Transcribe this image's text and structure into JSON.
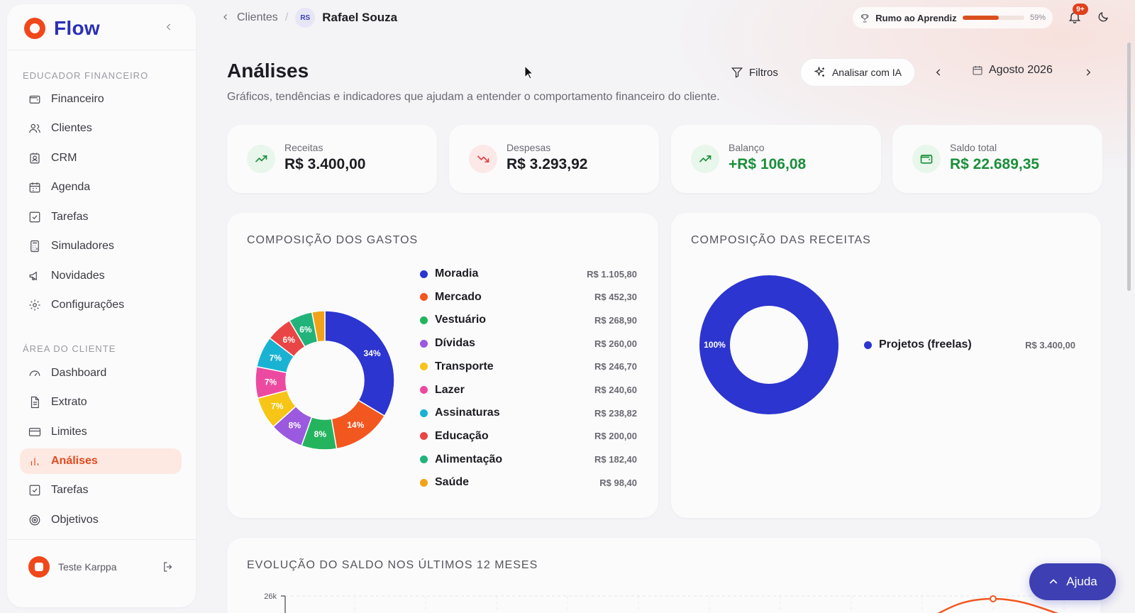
{
  "brand": {
    "name": "Flow"
  },
  "sidebar": {
    "section_advisor": "EDUCADOR FINANCEIRO",
    "advisor_items": [
      {
        "label": "Financeiro",
        "icon": "wallet-icon"
      },
      {
        "label": "Clientes",
        "icon": "users-icon"
      },
      {
        "label": "CRM",
        "icon": "contact-icon"
      },
      {
        "label": "Agenda",
        "icon": "calendar-icon"
      },
      {
        "label": "Tarefas",
        "icon": "checkbox-icon"
      },
      {
        "label": "Simuladores",
        "icon": "calculator-icon"
      },
      {
        "label": "Novidades",
        "icon": "megaphone-icon"
      },
      {
        "label": "Configurações",
        "icon": "gear-icon"
      }
    ],
    "section_client": "ÁREA DO CLIENTE",
    "client_items": [
      {
        "label": "Dashboard",
        "icon": "gauge-icon"
      },
      {
        "label": "Extrato",
        "icon": "document-icon"
      },
      {
        "label": "Limites",
        "icon": "card-icon"
      },
      {
        "label": "Análises",
        "icon": "bar-chart-icon",
        "active": true
      },
      {
        "label": "Tarefas",
        "icon": "checkbox-icon"
      },
      {
        "label": "Objetivos",
        "icon": "target-icon"
      }
    ],
    "user_name": "Teste Karppa"
  },
  "topbar": {
    "breadcrumb_parent": "Clientes",
    "client_initials": "RS",
    "client_name": "Rafael Souza",
    "progress_label": "Rumo ao Aprendiz",
    "progress_pct_label": "59%",
    "progress_value": 0.59,
    "notifications_badge": "9+"
  },
  "header": {
    "title": "Análises",
    "subtitle": "Gráficos, tendências e indicadores que ajudam a entender o comportamento financeiro do cliente.",
    "filters_label": "Filtros",
    "ai_label": "Analisar com IA",
    "month": "Agosto 2026"
  },
  "stats": [
    {
      "label": "Receitas",
      "value": "R$ 3.400,00",
      "icon": "trending-up-icon",
      "tone": "green"
    },
    {
      "label": "Despesas",
      "value": "R$ 3.293,92",
      "icon": "trending-down-icon",
      "tone": "red"
    },
    {
      "label": "Balanço",
      "value": "+R$ 106,08",
      "icon": "trending-up-icon",
      "tone": "green"
    },
    {
      "label": "Saldo total",
      "value": "R$ 22.689,35",
      "icon": "wallet-icon",
      "tone": "green"
    }
  ],
  "chart_data": [
    {
      "type": "pie",
      "title": "COMPOSIÇÃO DOS GASTOS",
      "categories": [
        "Moradia",
        "Mercado",
        "Vestuário",
        "Dívidas",
        "Transporte",
        "Lazer",
        "Assinaturas",
        "Educação",
        "Alimentação",
        "Saúde"
      ],
      "values": [
        1105.8,
        452.3,
        268.9,
        260.0,
        246.7,
        240.6,
        238.82,
        200.0,
        182.4,
        98.4
      ],
      "value_labels": [
        "R$ 1.105,80",
        "R$ 452,30",
        "R$ 268,90",
        "R$ 260,00",
        "R$ 246,70",
        "R$ 240,60",
        "R$ 238,82",
        "R$ 200,00",
        "R$ 182,40",
        "R$ 98,40"
      ],
      "colors": [
        "#2c35cf",
        "#f2571f",
        "#25b45e",
        "#9b59df",
        "#f6c516",
        "#ec4aa0",
        "#19b2d2",
        "#ea4545",
        "#22b37a",
        "#f2a219"
      ],
      "slice_labels": [
        "34%",
        "14%",
        "8%",
        "8%",
        "7%",
        "7%",
        "7%",
        "6%",
        "6%",
        ""
      ],
      "legend_position": "right"
    },
    {
      "type": "pie",
      "title": "COMPOSIÇÃO DAS RECEITAS",
      "categories": [
        "Projetos (freelas)"
      ],
      "values": [
        3400.0
      ],
      "value_labels": [
        "R$ 3.400,00"
      ],
      "colors": [
        "#2c35cf"
      ],
      "slice_labels": [
        "100%"
      ],
      "legend_position": "right"
    },
    {
      "type": "line",
      "title": "EVOLUÇÃO DO SALDO NOS ÚLTIMOS 12 MESES",
      "y_tick_top": "26k",
      "color": "#f2571f"
    }
  ],
  "help": {
    "label": "Ajuda"
  }
}
